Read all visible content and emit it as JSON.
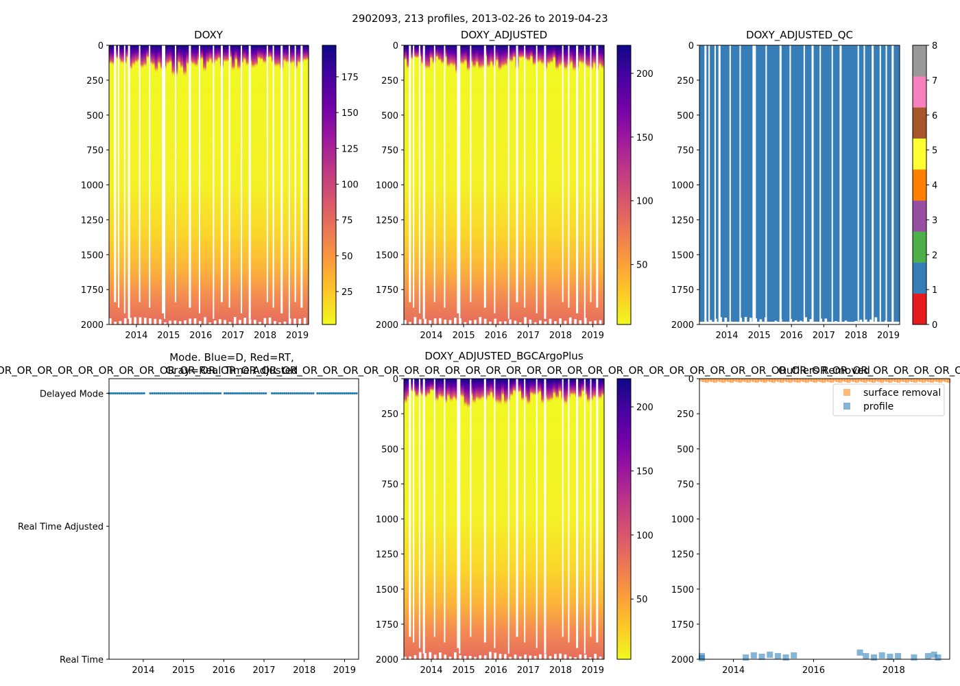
{
  "figure": {
    "suptitle": "2902093, 213 profiles, 2013-02-26 to 2019-04-23"
  },
  "colors": {
    "plasma": [
      "#f0f921",
      "#fdca26",
      "#fb9f3a",
      "#ed7953",
      "#d8576b",
      "#bd3786",
      "#9c179e",
      "#7201a8",
      "#46039f",
      "#0d0887"
    ],
    "qc": [
      "#e41a1c",
      "#377eb8",
      "#4daf4a",
      "#984ea3",
      "#ff7f00",
      "#ffff33",
      "#a65628",
      "#f781bf",
      "#999999"
    ],
    "profile_blue": "#1f77b4",
    "surface_orange": "#ff7f0e"
  },
  "chart_data": [
    {
      "id": "doxy",
      "type": "heatmap",
      "title": "DOXY",
      "x_ticks": [
        "2014",
        "2015",
        "2016",
        "2017",
        "2018",
        "2019"
      ],
      "x_tick_values": [
        2014,
        2015,
        2016,
        2017,
        2018,
        2019
      ],
      "xlim": [
        2013.15,
        2019.35
      ],
      "y_ticks": [
        "0",
        "250",
        "500",
        "750",
        "1000",
        "1250",
        "1500",
        "1750",
        "2000"
      ],
      "y_tick_values": [
        0,
        250,
        500,
        750,
        1000,
        1250,
        1500,
        1750,
        2000
      ],
      "ylim": [
        2000,
        0
      ],
      "colorbar": {
        "ticks": [
          "25",
          "50",
          "75",
          "100",
          "125",
          "150",
          "175"
        ],
        "tick_values": [
          25,
          50,
          75,
          100,
          125,
          150,
          175
        ],
        "range": [
          2,
          197
        ]
      }
    },
    {
      "id": "doxy_adjusted",
      "type": "heatmap",
      "title": "DOXY_ADJUSTED",
      "x_ticks": [
        "2014",
        "2015",
        "2016",
        "2017",
        "2018",
        "2019"
      ],
      "x_tick_values": [
        2014,
        2015,
        2016,
        2017,
        2018,
        2019
      ],
      "xlim": [
        2013.15,
        2019.35
      ],
      "y_ticks": [
        "0",
        "250",
        "500",
        "750",
        "1000",
        "1250",
        "1500",
        "1750",
        "2000"
      ],
      "y_tick_values": [
        0,
        250,
        500,
        750,
        1000,
        1250,
        1500,
        1750,
        2000
      ],
      "ylim": [
        2000,
        0
      ],
      "colorbar": {
        "ticks": [
          "50",
          "100",
          "150",
          "200"
        ],
        "tick_values": [
          50,
          100,
          150,
          200
        ],
        "range": [
          3,
          222
        ]
      }
    },
    {
      "id": "doxy_adjusted_qc",
      "type": "heatmap",
      "title": "DOXY_ADJUSTED_QC",
      "x_ticks": [
        "2014",
        "2015",
        "2016",
        "2017",
        "2018",
        "2019"
      ],
      "x_tick_values": [
        2014,
        2015,
        2016,
        2017,
        2018,
        2019
      ],
      "xlim": [
        2013.15,
        2019.35
      ],
      "y_ticks": [
        "0",
        "250",
        "500",
        "750",
        "1000",
        "1250",
        "1500",
        "1750",
        "2000"
      ],
      "y_tick_values": [
        0,
        250,
        500,
        750,
        1000,
        1250,
        1500,
        1750,
        2000
      ],
      "ylim": [
        2000,
        0
      ],
      "dominant_flag": 1,
      "colorbar": {
        "ticks": [
          "0",
          "1",
          "2",
          "3",
          "4",
          "5",
          "6",
          "7",
          "8"
        ],
        "tick_values": [
          0,
          1,
          2,
          3,
          4,
          5,
          6,
          7,
          8
        ],
        "range": [
          0,
          8
        ]
      }
    },
    {
      "id": "mode",
      "type": "scatter",
      "title_lines": [
        "Mode. Blue=D, Red=RT,",
        "Gray=Real Time Adjusted"
      ],
      "overlap_text": "OR_OR_OR_OR_OR_OR_OR_OR_OR_OR_OR_OR_OR_OR_OR_OR_OR_OR_OR_OR_OR_OR_OR_OR_OR_OR_OR_OR_OR_OR_OR_OR_OR_OR_OR_OR_OR_OR_OR_OR_OR_OR_OR_OR_OR_OR_OR_OR_OR_OR_OR_OR_OR_OR",
      "y_ticks": [
        "Delayed Mode",
        "Real Time Adjusted",
        "Real Time"
      ],
      "y_tick_values": [
        2,
        1,
        0
      ],
      "ylim": [
        -0.0,
        2.11
      ],
      "x_ticks": [
        "2014",
        "2015",
        "2016",
        "2017",
        "2018",
        "2019"
      ],
      "x_tick_values": [
        2014,
        2015,
        2016,
        2017,
        2018,
        2019
      ],
      "xlim": [
        2013.15,
        2019.35
      ],
      "series": [
        {
          "name": "Delayed Mode",
          "y": 2,
          "x_start": 2013.15,
          "x_end": 2019.3
        }
      ]
    },
    {
      "id": "doxy_adjusted_bgc",
      "type": "heatmap",
      "title": "DOXY_ADJUSTED_BGCArgoPlus",
      "x_ticks": [
        "2014",
        "2015",
        "2016",
        "2017",
        "2018",
        "2019"
      ],
      "x_tick_values": [
        2014,
        2015,
        2016,
        2017,
        2018,
        2019
      ],
      "xlim": [
        2013.15,
        2019.35
      ],
      "y_ticks": [
        "0",
        "250",
        "500",
        "750",
        "1000",
        "1250",
        "1500",
        "1750",
        "2000"
      ],
      "y_tick_values": [
        0,
        250,
        500,
        750,
        1000,
        1250,
        1500,
        1750,
        2000
      ],
      "ylim": [
        2000,
        0
      ],
      "colorbar": {
        "ticks": [
          "50",
          "100",
          "150",
          "200"
        ],
        "tick_values": [
          50,
          100,
          150,
          200
        ],
        "range": [
          3,
          222
        ]
      }
    },
    {
      "id": "outliers",
      "type": "scatter",
      "title": "Outliers Removed",
      "x_ticks": [
        "2014",
        "2016",
        "2018"
      ],
      "x_tick_values": [
        2014,
        2016,
        2018
      ],
      "xlim": [
        2013.15,
        2019.4
      ],
      "y_ticks": [
        "0",
        "250",
        "500",
        "750",
        "1000",
        "1250",
        "1500",
        "1750",
        "2000"
      ],
      "y_tick_values": [
        0,
        250,
        500,
        750,
        1000,
        1250,
        1500,
        1750,
        2000
      ],
      "ylim": [
        2000,
        0
      ],
      "legend": {
        "position": "top-right",
        "items": [
          "surface removal",
          "profile"
        ]
      },
      "series": [
        {
          "name": "surface removal",
          "type": "band",
          "x_start": 2013.15,
          "x_end": 2019.4,
          "depth_min": 0,
          "depth_max": 12
        },
        {
          "name": "profile",
          "points": [
            [
              2013.2,
              1975
            ],
            [
              2013.2,
              1990
            ],
            [
              2014.3,
              1985
            ],
            [
              2014.5,
              1970
            ],
            [
              2014.7,
              1980
            ],
            [
              2014.9,
              1965
            ],
            [
              2015.1,
              1975
            ],
            [
              2015.3,
              1985
            ],
            [
              2015.5,
              1970
            ],
            [
              2017.15,
              1950
            ],
            [
              2017.3,
              1975
            ],
            [
              2017.5,
              1985
            ],
            [
              2017.7,
              1970
            ],
            [
              2017.9,
              1980
            ],
            [
              2018.1,
              1975
            ],
            [
              2018.5,
              1985
            ],
            [
              2018.85,
              1975
            ],
            [
              2019.0,
              1965
            ],
            [
              2019.1,
              1985
            ]
          ]
        }
      ]
    }
  ]
}
